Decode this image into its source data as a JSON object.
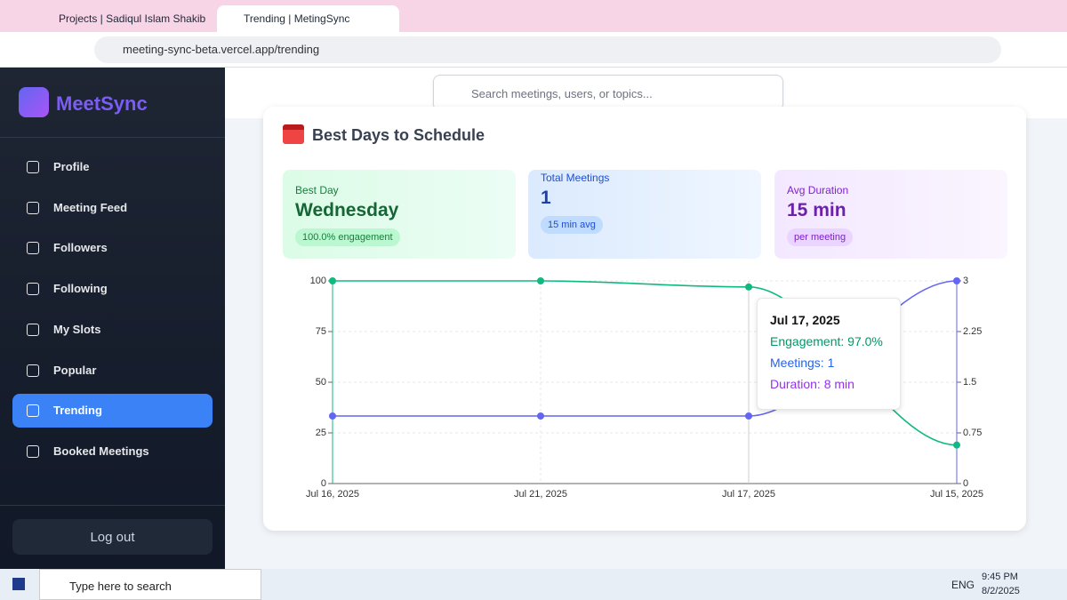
{
  "browser": {
    "tabs": [
      "Projects | Sadiqul Islam Shakib",
      "Trending | MetingSync"
    ],
    "url": "meeting-sync-beta.vercel.app/trending"
  },
  "sidebar": {
    "brand": "MeetSync",
    "nav": [
      "Profile",
      "Meeting Feed",
      "Followers",
      "Following",
      "My Slots",
      "Popular",
      "Trending",
      "Booked Meetings"
    ],
    "logout": "Log out"
  },
  "header": {
    "search_placeholder": "Search meetings, users, or topics..."
  },
  "section": {
    "title": "Best Days to Schedule",
    "cards": [
      {
        "label": "Best Day",
        "value": "Wednesday",
        "note": "100.0% engagement"
      },
      {
        "label": "Total Meetings",
        "value": 1,
        "note": "15 min avg"
      },
      {
        "label": "Avg Duration",
        "value": "15 min",
        "note": "per meeting"
      }
    ]
  },
  "chart_data": {
    "type": "line",
    "categories": [
      "Jul 16, 2025",
      "Jul 21, 2025",
      "Jul 17, 2025",
      "Jul 15, 2025"
    ],
    "series": [
      {
        "name": "Engagement",
        "color": "#10b981",
        "values": [
          100,
          100,
          97,
          19
        ]
      },
      {
        "name": "Meetings",
        "color": "#6366f1",
        "axis": "y2",
        "values": [
          1,
          1,
          1,
          3
        ]
      }
    ],
    "ylim": [
      0,
      100
    ],
    "yticks": [
      0,
      25,
      50,
      75,
      100
    ],
    "y2lim": [
      0,
      3
    ],
    "y2ticks": [
      0,
      0.75,
      1.5,
      2.25,
      3
    ],
    "grid": true,
    "tooltip": {
      "lines": [
        "Engagement: 97.0%",
        "Meetings: 1",
        "Duration: 8 min"
      ]
    }
  },
  "taskbar": {
    "search": "Type here to search",
    "language": "ENG",
    "time": "9:45 PM",
    "date": "8/2/2025"
  }
}
